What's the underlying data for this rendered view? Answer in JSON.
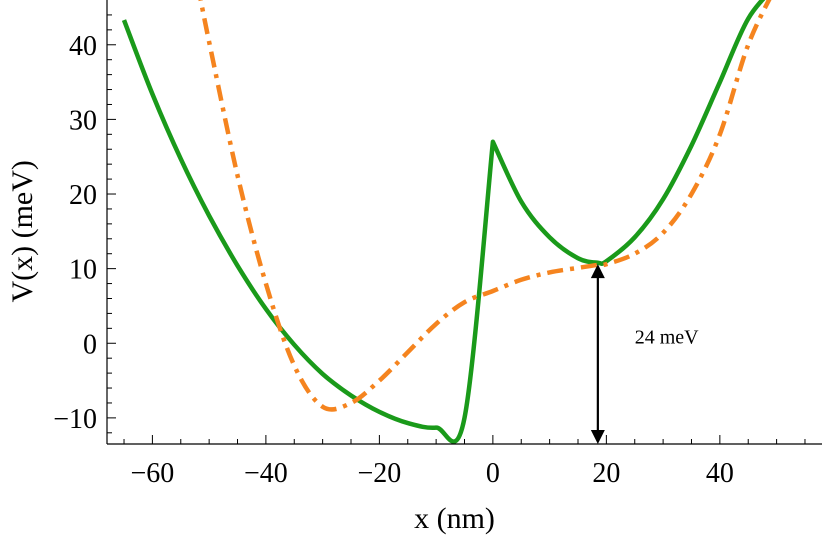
{
  "chart_data": {
    "type": "line",
    "title": "",
    "xlabel": "x (nm)",
    "ylabel": "V(x) (meV)",
    "xlim": [
      -68,
      58
    ],
    "ylim": [
      -13.5,
      46
    ],
    "grid": false,
    "x_ticks": [
      -60,
      -40,
      -20,
      0,
      20,
      40
    ],
    "x_tick_labels": [
      "−60",
      "−40",
      "−20",
      "0",
      "20",
      "40"
    ],
    "y_ticks": [
      -10,
      0,
      10,
      20,
      30,
      40
    ],
    "y_tick_labels": [
      "−10",
      "0",
      "10",
      "20",
      "30",
      "40"
    ],
    "series": [
      {
        "color": "#1a9a1a",
        "style": "solid",
        "x": [
          -65,
          -60,
          -55,
          -50,
          -45,
          -40,
          -35,
          -30,
          -25,
          -20,
          -15,
          -10,
          -5,
          0,
          5,
          10,
          15,
          18.5,
          20,
          25,
          30,
          35,
          40,
          45,
          50
        ],
        "y": [
          43.3,
          33.4,
          24.7,
          17.1,
          10.4,
          4.6,
          -0.2,
          -4.1,
          -7.0,
          -9.2,
          -10.7,
          -11.3,
          -10.0,
          27.0,
          19.0,
          14.2,
          11.4,
          10.8,
          11.0,
          14.2,
          19.3,
          26.5,
          35.0,
          43.5,
          48.0
        ]
      },
      {
        "color": "#f5841f",
        "style": "dash-dot",
        "x": [
          -52,
          -50,
          -45,
          -40,
          -35,
          -30,
          -25,
          -20,
          -15,
          -10,
          -5,
          0,
          5,
          10,
          15,
          18.5,
          20,
          25,
          30,
          35,
          40,
          45,
          50
        ],
        "y": [
          48.0,
          40.4,
          22.5,
          8.0,
          -3.0,
          -8.5,
          -8.0,
          -5.0,
          -1.2,
          2.6,
          5.5,
          7.0,
          8.5,
          9.5,
          10.1,
          10.5,
          10.6,
          12.0,
          14.8,
          20.0,
          28.0,
          40.0,
          48.0
        ]
      }
    ],
    "annotation": {
      "text": "24 meV",
      "arrow_x": 18.5,
      "arrow_y_top": 10.6,
      "arrow_y_bottom": -13.5,
      "text_x": 25,
      "text_y": 0
    }
  }
}
